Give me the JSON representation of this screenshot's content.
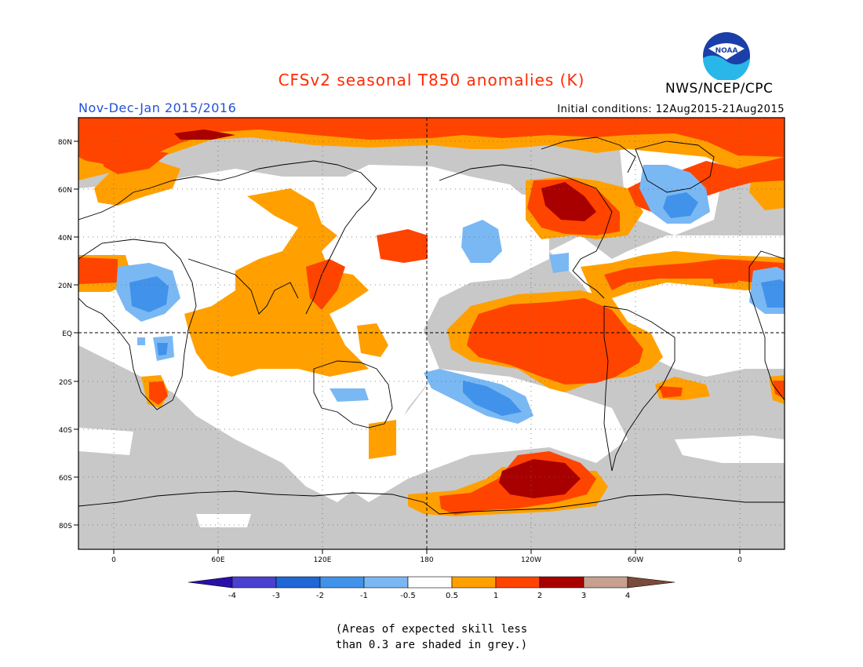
{
  "header": {
    "title": "CFSv2 seasonal T850 anomalies (K)",
    "period": "Nov-Dec-Jan 2015/2016",
    "initial_conditions": "Initial conditions: 12Aug2015-21Aug2015",
    "organization": "NWS/NCEP/CPC",
    "logo_text": "NOAA"
  },
  "map": {
    "lat_labels": [
      "80N",
      "60N",
      "40N",
      "20N",
      "EQ",
      "20S",
      "40S",
      "60S",
      "80S"
    ],
    "lon_labels": [
      "0",
      "60E",
      "120E",
      "180",
      "120W",
      "60W",
      "0"
    ]
  },
  "legend": {
    "labels": [
      "-4",
      "-3",
      "-2",
      "-1",
      "-0.5",
      "0.5",
      "1",
      "2",
      "3",
      "4"
    ],
    "colors": [
      "#2a0fa8",
      "#4a3fd0",
      "#1f66d6",
      "#4192ea",
      "#7ab8f4",
      "#ffffff",
      "#ffa000",
      "#ff4400",
      "#a80000",
      "#c8a090",
      "#7a4a3a"
    ]
  },
  "colors": {
    "skill_grey": "#c8c8c8",
    "title_red": "#ff2a00",
    "period_blue": "#2450d8"
  },
  "footnote": {
    "line1": "(Areas of expected skill less",
    "line2": "than 0.3 are shaded in grey.)"
  }
}
